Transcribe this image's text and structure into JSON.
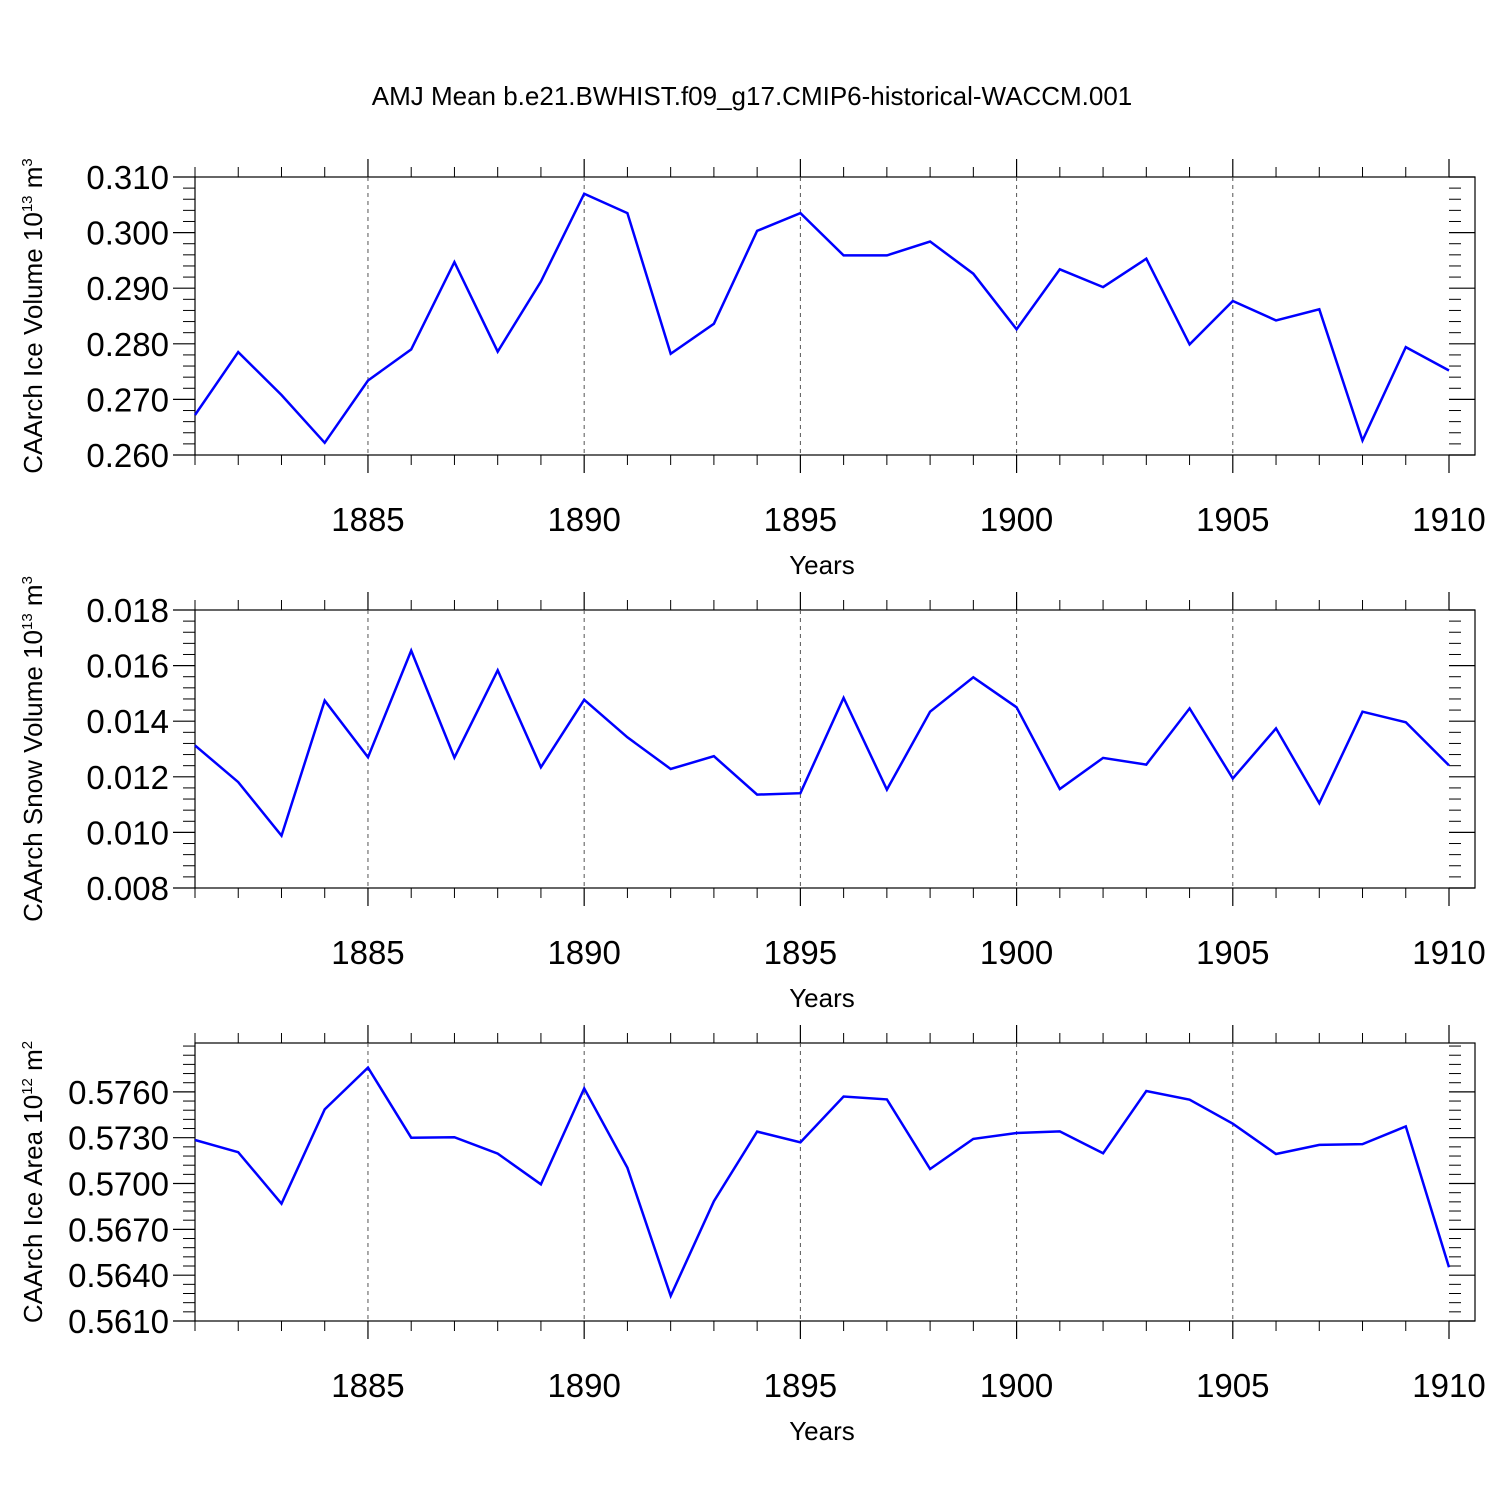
{
  "title": "AMJ Mean b.e21.BWHIST.f09_g17.CMIP6-historical-WACCM.001",
  "chart_data": [
    {
      "type": "line",
      "xlabel": "Years",
      "ylabel": {
        "text": "CAArch Ice Volume 10",
        "exp": "13",
        "unit": " m",
        "unit_exp": "3"
      },
      "xlim": [
        1881,
        1910
      ],
      "ylim": [
        0.26,
        0.31
      ],
      "major_yticks": [
        0.26,
        0.27,
        0.28,
        0.29,
        0.3,
        0.31
      ],
      "ytick_labels": [
        "0.260",
        "0.270",
        "0.280",
        "0.290",
        "0.300",
        "0.310"
      ],
      "major_xticks": [
        1885,
        1890,
        1895,
        1900,
        1905,
        1910
      ],
      "xtick_labels": [
        "1885",
        "1890",
        "1895",
        "1900",
        "1905",
        "1910"
      ],
      "grid": "dashed vertical at major x ticks",
      "color": "#0000ff",
      "x": [
        1881,
        1882,
        1883,
        1884,
        1885,
        1886,
        1887,
        1888,
        1889,
        1890,
        1891,
        1892,
        1893,
        1894,
        1895,
        1896,
        1897,
        1898,
        1899,
        1900,
        1901,
        1902,
        1903,
        1904,
        1905,
        1906,
        1907,
        1908,
        1909,
        1910
      ],
      "values": [
        0.2672,
        0.2785,
        0.2708,
        0.2622,
        0.2734,
        0.279,
        0.2947,
        0.2786,
        0.2912,
        0.307,
        0.3035,
        0.2782,
        0.2836,
        0.3003,
        0.3035,
        0.2959,
        0.2959,
        0.2984,
        0.2926,
        0.2826,
        0.2934,
        0.2902,
        0.2953,
        0.2799,
        0.2877,
        0.2842,
        0.2862,
        0.2626,
        0.2794,
        0.2752
      ]
    },
    {
      "type": "line",
      "xlabel": "Years",
      "ylabel": {
        "text": "CAArch Snow Volume 10",
        "exp": "13",
        "unit": " m",
        "unit_exp": "3"
      },
      "xlim": [
        1881,
        1910
      ],
      "ylim": [
        0.008,
        0.018
      ],
      "major_yticks": [
        0.008,
        0.01,
        0.012,
        0.014,
        0.016,
        0.018
      ],
      "ytick_labels": [
        "0.008",
        "0.010",
        "0.012",
        "0.014",
        "0.016",
        "0.018"
      ],
      "major_xticks": [
        1885,
        1890,
        1895,
        1900,
        1905,
        1910
      ],
      "xtick_labels": [
        "1885",
        "1890",
        "1895",
        "1900",
        "1905",
        "1910"
      ],
      "grid": "dashed vertical at major x ticks",
      "color": "#0000ff",
      "x": [
        1881,
        1882,
        1883,
        1884,
        1885,
        1886,
        1887,
        1888,
        1889,
        1890,
        1891,
        1892,
        1893,
        1894,
        1895,
        1896,
        1897,
        1898,
        1899,
        1900,
        1901,
        1902,
        1903,
        1904,
        1905,
        1906,
        1907,
        1908,
        1909,
        1910
      ],
      "values": [
        0.01313,
        0.01181,
        0.00988,
        0.01474,
        0.0127,
        0.01654,
        0.01269,
        0.01583,
        0.01234,
        0.01477,
        0.01342,
        0.01228,
        0.01274,
        0.01136,
        0.01141,
        0.01484,
        0.01154,
        0.01434,
        0.01558,
        0.0145,
        0.01156,
        0.01268,
        0.01244,
        0.01446,
        0.01194,
        0.01374,
        0.01105,
        0.01434,
        0.01396,
        0.01241
      ]
    },
    {
      "type": "line",
      "xlabel": "Years",
      "ylabel": {
        "text": "CAArch Ice Area 10",
        "exp": "12",
        "unit": " m",
        "unit_exp": "2"
      },
      "xlim": [
        1881,
        1910
      ],
      "ylim": [
        0.561,
        0.5792
      ],
      "major_yticks": [
        0.561,
        0.564,
        0.567,
        0.57,
        0.573,
        0.576
      ],
      "ytick_labels": [
        "0.5610",
        "0.5640",
        "0.5670",
        "0.5700",
        "0.5730",
        "0.5760"
      ],
      "major_xticks": [
        1885,
        1890,
        1895,
        1900,
        1905,
        1910
      ],
      "xtick_labels": [
        "1885",
        "1890",
        "1895",
        "1900",
        "1905",
        "1910"
      ],
      "grid": "dashed vertical at major x ticks",
      "color": "#0000ff",
      "x": [
        1881,
        1882,
        1883,
        1884,
        1885,
        1886,
        1887,
        1888,
        1889,
        1890,
        1891,
        1892,
        1893,
        1894,
        1895,
        1896,
        1897,
        1898,
        1899,
        1900,
        1901,
        1902,
        1903,
        1904,
        1905,
        1906,
        1907,
        1908,
        1909,
        1910
      ],
      "values": [
        0.57285,
        0.57205,
        0.56868,
        0.57485,
        0.57759,
        0.573,
        0.57303,
        0.57196,
        0.56995,
        0.57623,
        0.57103,
        0.56264,
        0.56884,
        0.5734,
        0.5727,
        0.5757,
        0.57551,
        0.57095,
        0.57292,
        0.57331,
        0.57341,
        0.57198,
        0.57606,
        0.57549,
        0.57392,
        0.57193,
        0.57253,
        0.57258,
        0.57374,
        0.56452
      ]
    }
  ]
}
